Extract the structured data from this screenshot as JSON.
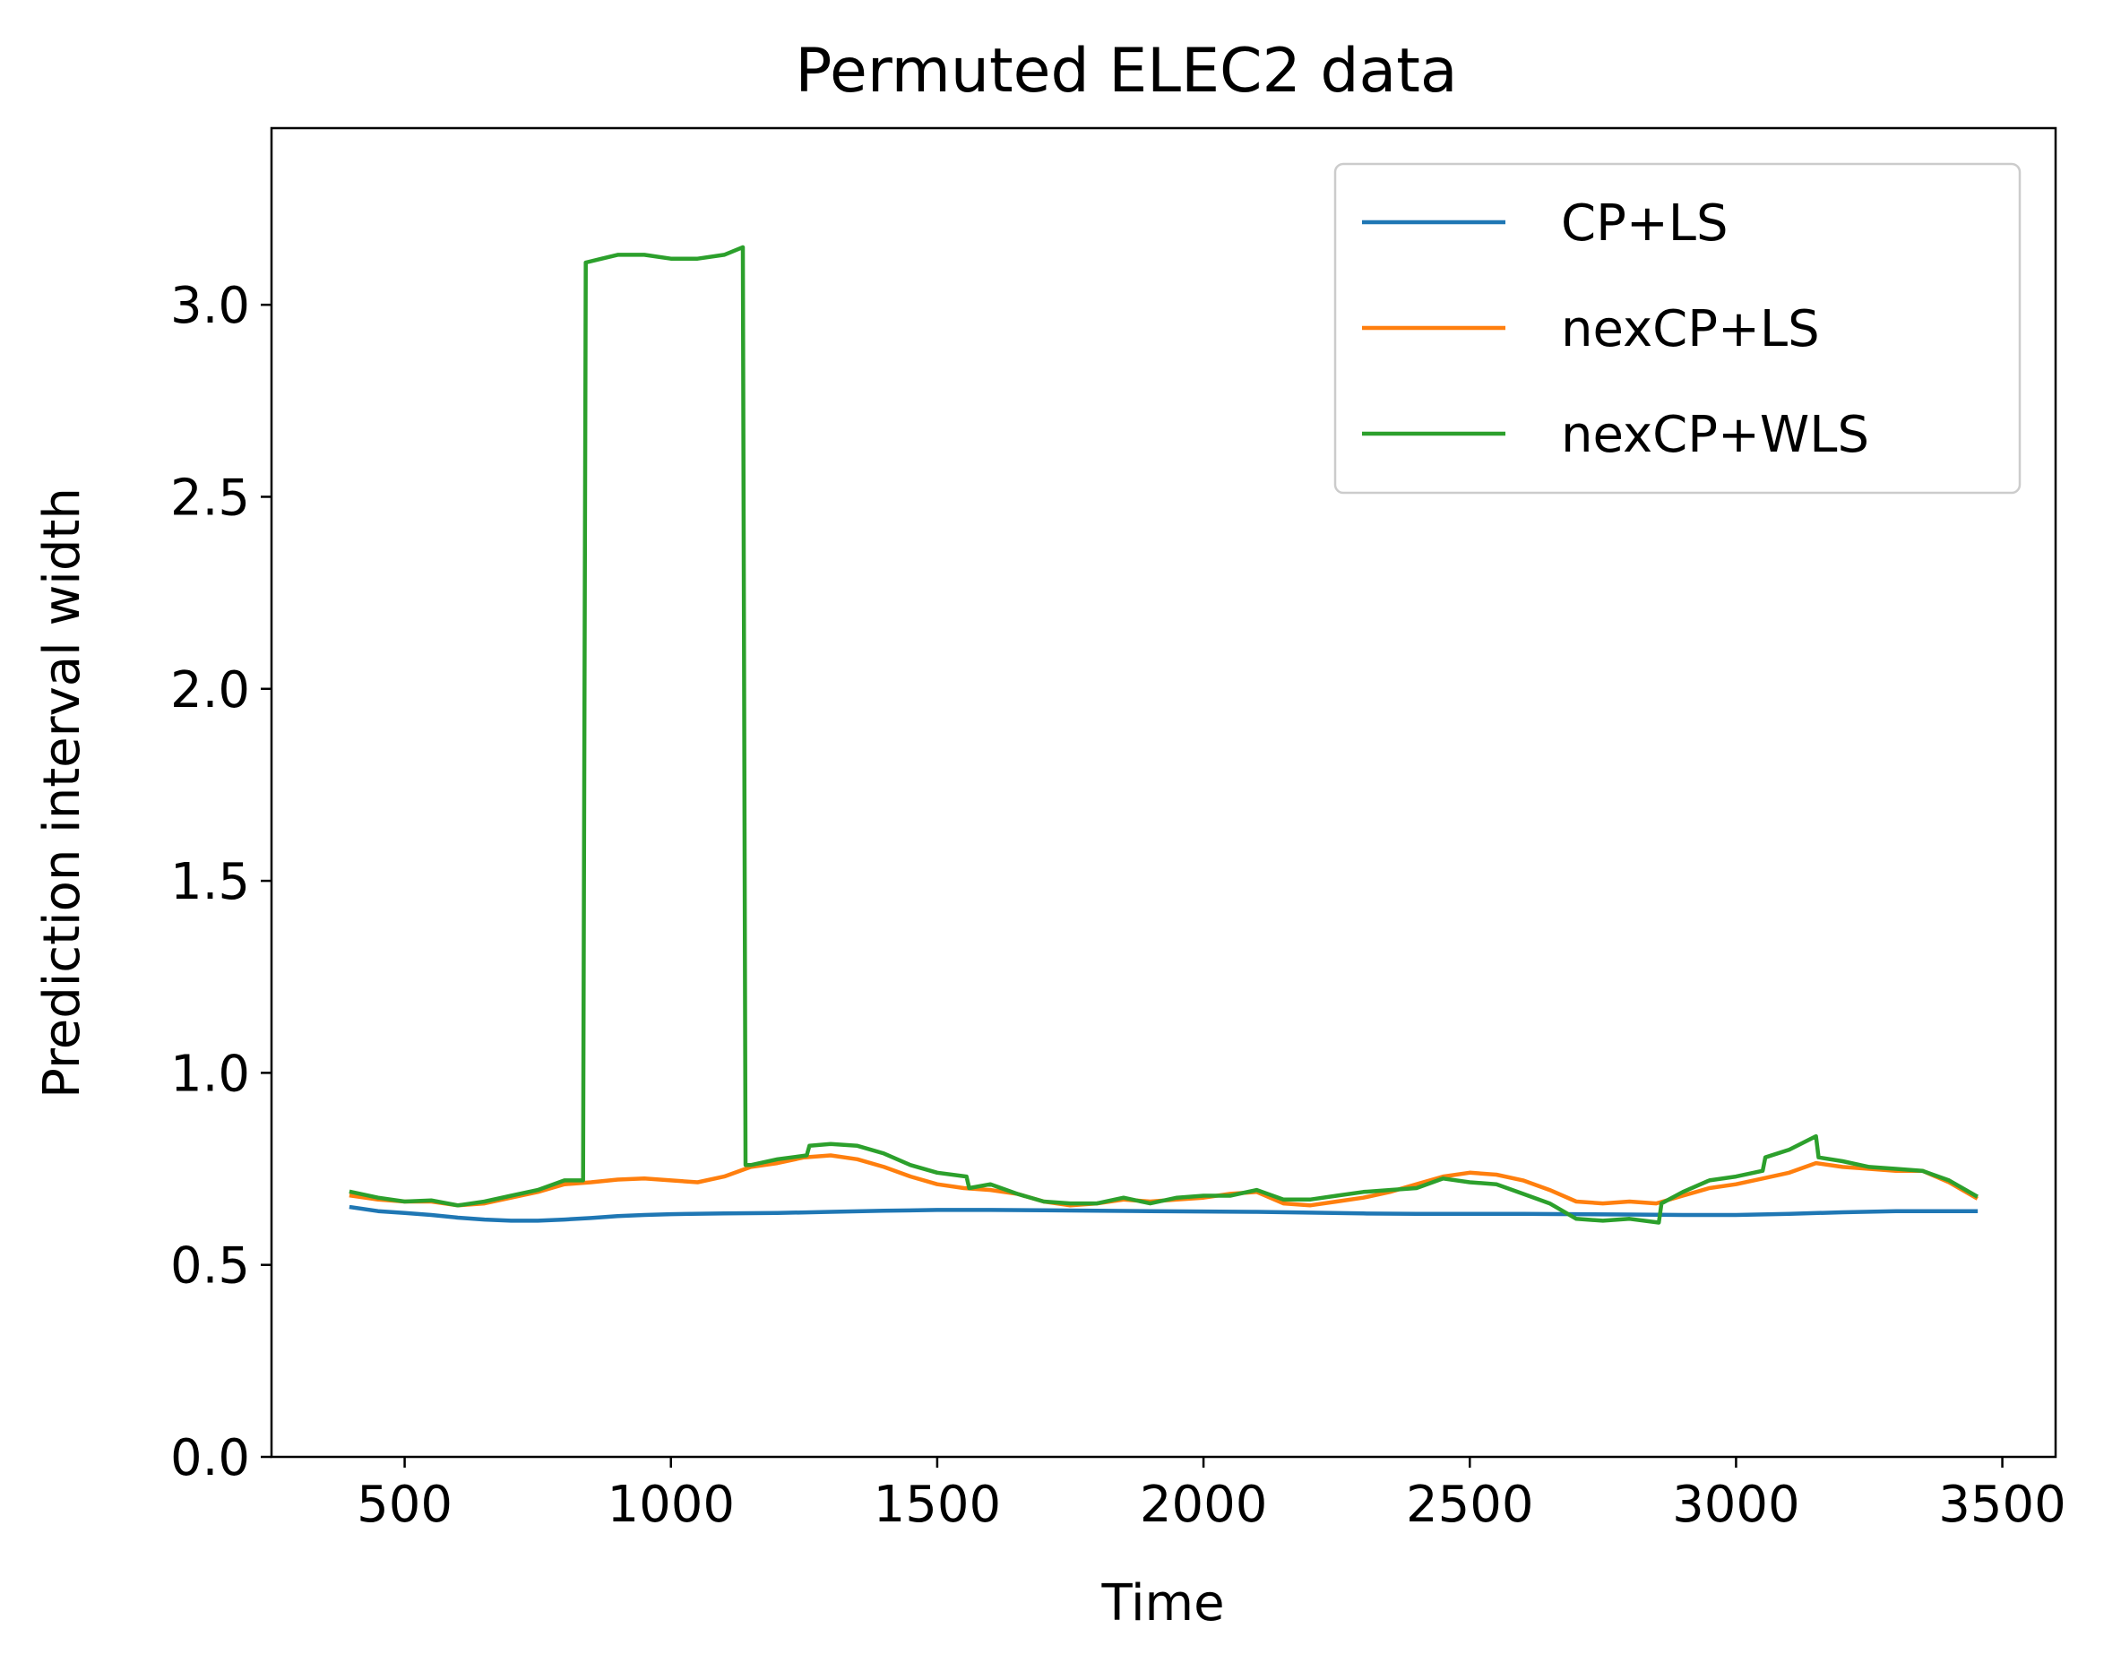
{
  "chart_data": {
    "type": "line",
    "title": "Permuted ELEC2 data",
    "xlabel": "Time",
    "ylabel": "Prediction interval width",
    "xlim": [
      250,
      3600
    ],
    "ylim": [
      0,
      3.46
    ],
    "xticks": [
      500,
      1000,
      1500,
      2000,
      2500,
      3000,
      3500
    ],
    "yticks": [
      0.0,
      0.5,
      1.0,
      1.5,
      2.0,
      2.5,
      3.0
    ],
    "xtick_labels": [
      "500",
      "1000",
      "1500",
      "2000",
      "2500",
      "3000",
      "3500"
    ],
    "ytick_labels": [
      "0.0",
      "0.5",
      "1.0",
      "1.5",
      "2.0",
      "2.5",
      "3.0"
    ],
    "grid": false,
    "legend_position": "top-right",
    "series": [
      {
        "name": "CP+LS",
        "color": "#1f77b4",
        "points": [
          [
            400,
            0.65
          ],
          [
            450,
            0.64
          ],
          [
            500,
            0.635
          ],
          [
            550,
            0.63
          ],
          [
            600,
            0.623
          ],
          [
            650,
            0.618
          ],
          [
            700,
            0.615
          ],
          [
            750,
            0.615
          ],
          [
            800,
            0.618
          ],
          [
            850,
            0.622
          ],
          [
            900,
            0.627
          ],
          [
            950,
            0.63
          ],
          [
            1000,
            0.632
          ],
          [
            1100,
            0.634
          ],
          [
            1200,
            0.635
          ],
          [
            1300,
            0.638
          ],
          [
            1400,
            0.641
          ],
          [
            1500,
            0.643
          ],
          [
            1600,
            0.643
          ],
          [
            1700,
            0.642
          ],
          [
            1800,
            0.641
          ],
          [
            1900,
            0.64
          ],
          [
            2000,
            0.639
          ],
          [
            2100,
            0.638
          ],
          [
            2200,
            0.636
          ],
          [
            2300,
            0.634
          ],
          [
            2400,
            0.633
          ],
          [
            2500,
            0.633
          ],
          [
            2600,
            0.633
          ],
          [
            2700,
            0.632
          ],
          [
            2800,
            0.631
          ],
          [
            2900,
            0.63
          ],
          [
            3000,
            0.63
          ],
          [
            3100,
            0.633
          ],
          [
            3200,
            0.637
          ],
          [
            3300,
            0.64
          ],
          [
            3400,
            0.64
          ],
          [
            3450,
            0.64
          ]
        ]
      },
      {
        "name": "nexCP+LS",
        "color": "#ff7f0e",
        "points": [
          [
            400,
            0.68
          ],
          [
            450,
            0.67
          ],
          [
            500,
            0.665
          ],
          [
            550,
            0.665
          ],
          [
            600,
            0.655
          ],
          [
            650,
            0.66
          ],
          [
            700,
            0.675
          ],
          [
            750,
            0.69
          ],
          [
            800,
            0.71
          ],
          [
            850,
            0.715
          ],
          [
            900,
            0.722
          ],
          [
            950,
            0.725
          ],
          [
            1000,
            0.72
          ],
          [
            1050,
            0.715
          ],
          [
            1100,
            0.73
          ],
          [
            1150,
            0.755
          ],
          [
            1200,
            0.765
          ],
          [
            1250,
            0.78
          ],
          [
            1300,
            0.785
          ],
          [
            1350,
            0.775
          ],
          [
            1400,
            0.755
          ],
          [
            1450,
            0.73
          ],
          [
            1500,
            0.71
          ],
          [
            1550,
            0.7
          ],
          [
            1600,
            0.695
          ],
          [
            1650,
            0.685
          ],
          [
            1700,
            0.665
          ],
          [
            1750,
            0.655
          ],
          [
            1800,
            0.66
          ],
          [
            1850,
            0.67
          ],
          [
            1900,
            0.665
          ],
          [
            1950,
            0.67
          ],
          [
            2000,
            0.675
          ],
          [
            2050,
            0.685
          ],
          [
            2100,
            0.69
          ],
          [
            2150,
            0.66
          ],
          [
            2200,
            0.655
          ],
          [
            2250,
            0.665
          ],
          [
            2300,
            0.675
          ],
          [
            2350,
            0.69
          ],
          [
            2400,
            0.71
          ],
          [
            2450,
            0.73
          ],
          [
            2500,
            0.74
          ],
          [
            2550,
            0.735
          ],
          [
            2600,
            0.72
          ],
          [
            2650,
            0.695
          ],
          [
            2700,
            0.665
          ],
          [
            2750,
            0.66
          ],
          [
            2800,
            0.665
          ],
          [
            2850,
            0.66
          ],
          [
            2900,
            0.68
          ],
          [
            2950,
            0.7
          ],
          [
            3000,
            0.71
          ],
          [
            3050,
            0.725
          ],
          [
            3100,
            0.74
          ],
          [
            3150,
            0.765
          ],
          [
            3200,
            0.755
          ],
          [
            3250,
            0.75
          ],
          [
            3300,
            0.745
          ],
          [
            3350,
            0.745
          ],
          [
            3400,
            0.715
          ],
          [
            3450,
            0.675
          ]
        ]
      },
      {
        "name": "nexCP+WLS",
        "color": "#2ca02c",
        "points": [
          [
            400,
            0.69
          ],
          [
            450,
            0.675
          ],
          [
            500,
            0.665
          ],
          [
            550,
            0.668
          ],
          [
            600,
            0.655
          ],
          [
            650,
            0.665
          ],
          [
            700,
            0.68
          ],
          [
            750,
            0.695
          ],
          [
            800,
            0.72
          ],
          [
            835,
            0.72
          ],
          [
            840,
            3.11
          ],
          [
            870,
            3.12
          ],
          [
            900,
            3.13
          ],
          [
            950,
            3.13
          ],
          [
            1000,
            3.12
          ],
          [
            1050,
            3.12
          ],
          [
            1100,
            3.13
          ],
          [
            1135,
            3.15
          ],
          [
            1140,
            0.76
          ],
          [
            1150,
            0.76
          ],
          [
            1200,
            0.775
          ],
          [
            1255,
            0.785
          ],
          [
            1260,
            0.81
          ],
          [
            1300,
            0.815
          ],
          [
            1350,
            0.81
          ],
          [
            1400,
            0.79
          ],
          [
            1450,
            0.76
          ],
          [
            1500,
            0.74
          ],
          [
            1555,
            0.73
          ],
          [
            1560,
            0.7
          ],
          [
            1600,
            0.71
          ],
          [
            1650,
            0.685
          ],
          [
            1700,
            0.665
          ],
          [
            1750,
            0.66
          ],
          [
            1800,
            0.66
          ],
          [
            1850,
            0.675
          ],
          [
            1900,
            0.66
          ],
          [
            1950,
            0.675
          ],
          [
            2000,
            0.68
          ],
          [
            2050,
            0.68
          ],
          [
            2100,
            0.695
          ],
          [
            2150,
            0.67
          ],
          [
            2200,
            0.67
          ],
          [
            2250,
            0.68
          ],
          [
            2300,
            0.69
          ],
          [
            2350,
            0.695
          ],
          [
            2400,
            0.7
          ],
          [
            2450,
            0.725
          ],
          [
            2500,
            0.715
          ],
          [
            2550,
            0.71
          ],
          [
            2600,
            0.685
          ],
          [
            2650,
            0.66
          ],
          [
            2700,
            0.62
          ],
          [
            2750,
            0.615
          ],
          [
            2800,
            0.62
          ],
          [
            2855,
            0.61
          ],
          [
            2860,
            0.66
          ],
          [
            2900,
            0.69
          ],
          [
            2950,
            0.72
          ],
          [
            3000,
            0.73
          ],
          [
            3050,
            0.745
          ],
          [
            3055,
            0.78
          ],
          [
            3100,
            0.8
          ],
          [
            3150,
            0.835
          ],
          [
            3155,
            0.78
          ],
          [
            3200,
            0.77
          ],
          [
            3250,
            0.755
          ],
          [
            3300,
            0.75
          ],
          [
            3350,
            0.745
          ],
          [
            3400,
            0.72
          ],
          [
            3450,
            0.68
          ]
        ]
      }
    ]
  }
}
